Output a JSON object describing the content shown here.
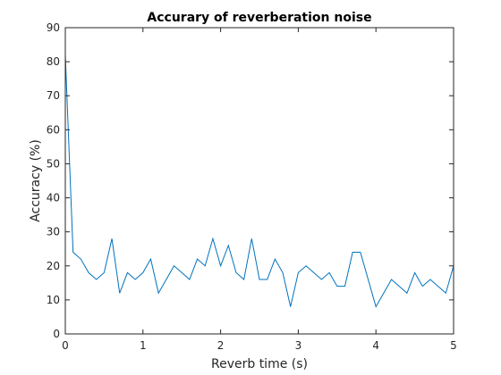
{
  "chart_data": {
    "type": "line",
    "title": "Accurary of reverberation noise",
    "xlabel": "Reverb time (s)",
    "ylabel": "Accuracy (%)",
    "xlim": [
      0,
      5
    ],
    "ylim": [
      0,
      90
    ],
    "xticks": [
      0,
      1,
      2,
      3,
      4,
      5
    ],
    "yticks": [
      0,
      10,
      20,
      30,
      40,
      50,
      60,
      70,
      80,
      90
    ],
    "grid": false,
    "box": true,
    "series": [
      {
        "color": "#0072bd",
        "x": [
          0,
          0.1,
          0.2,
          0.3,
          0.4,
          0.5,
          0.6,
          0.7,
          0.8,
          0.9,
          1.0,
          1.1,
          1.2,
          1.3,
          1.4,
          1.5,
          1.6,
          1.7,
          1.8,
          1.9,
          2.0,
          2.1,
          2.2,
          2.3,
          2.4,
          2.5,
          2.6,
          2.7,
          2.8,
          2.9,
          3.0,
          3.1,
          3.2,
          3.3,
          3.4,
          3.5,
          3.6,
          3.7,
          3.8,
          3.9,
          4.0,
          4.1,
          4.2,
          4.3,
          4.4,
          4.5,
          4.6,
          4.7,
          4.8,
          4.9,
          5.0
        ],
        "values": [
          82,
          24,
          22,
          18,
          16,
          18,
          28,
          12,
          18,
          16,
          18,
          22,
          12,
          16,
          20,
          18,
          16,
          22,
          20,
          28,
          20,
          26,
          18,
          16,
          28,
          16,
          16,
          22,
          18,
          8,
          18,
          20,
          18,
          16,
          18,
          14,
          14,
          24,
          24,
          16,
          8,
          12,
          16,
          14,
          12,
          18,
          14,
          16,
          14,
          12,
          20
        ]
      }
    ]
  }
}
